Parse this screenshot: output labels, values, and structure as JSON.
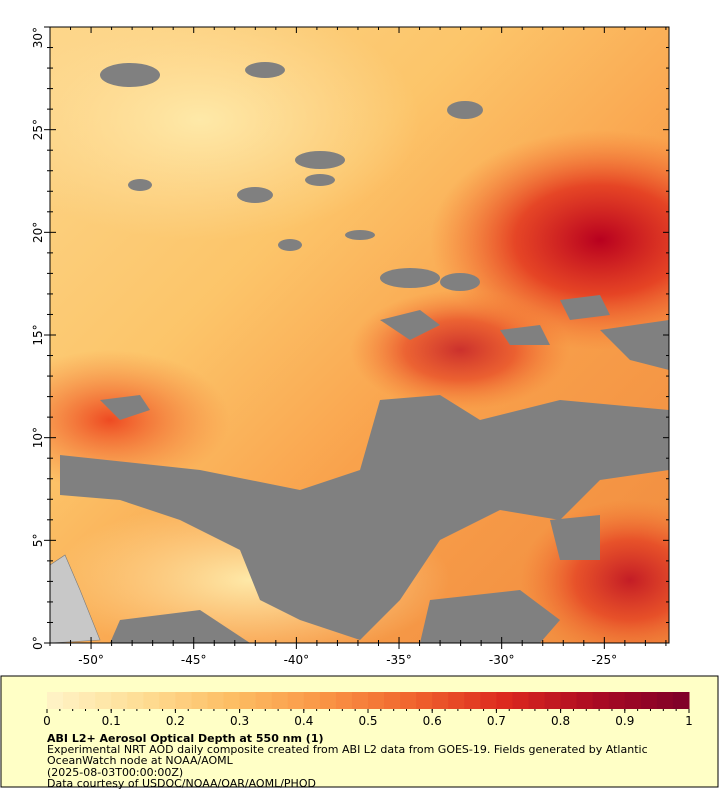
{
  "map": {
    "lat_ticks": [
      "0°",
      "5°",
      "10°",
      "15°",
      "20°",
      "25°",
      "30°"
    ],
    "lon_ticks": [
      "-50°",
      "-45°",
      "-40°",
      "-35°",
      "-30°",
      "-25°"
    ]
  },
  "colorbar": {
    "ticks": [
      0,
      0.1,
      0.2,
      0.3,
      0.4,
      0.5,
      0.6,
      0.7,
      0.8,
      0.9,
      1
    ]
  },
  "caption": {
    "title": "ABI L2+ Aerosol Optical Depth at 550 nm (1)",
    "description": "Experimental NRT AOD daily composite created from ABI L2 data from GOES-19. Fields generated by Atlantic OceanWatch node at NOAA/AOML",
    "date": "(2025-08-03T00:00:00Z)",
    "credit": "Data courtesy of USDOC/NOAA/OAR/AOML/PHOD"
  }
}
